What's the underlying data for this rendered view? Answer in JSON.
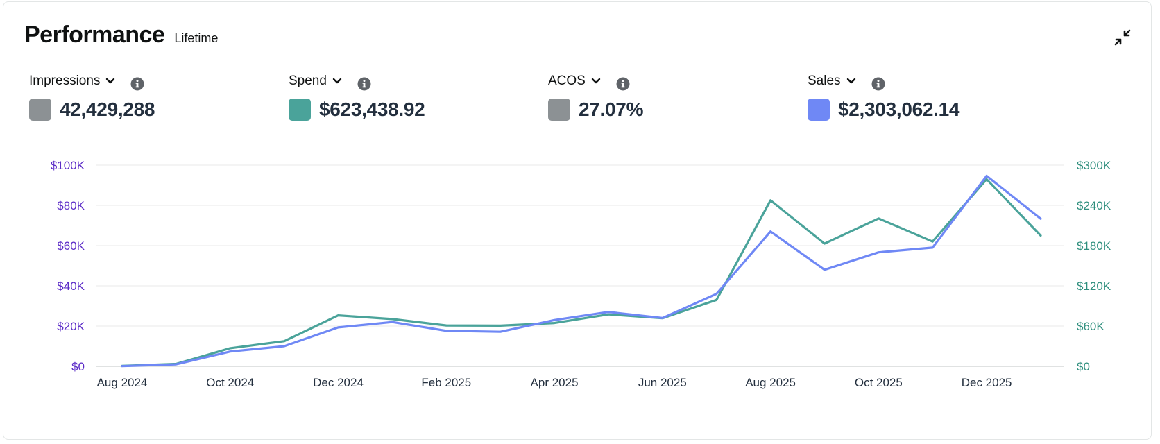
{
  "header": {
    "title": "Performance",
    "subtitle": "Lifetime"
  },
  "icons": {
    "collapse": "collapse-arrows-icon",
    "chevron": "chevron-down-icon",
    "info": "info-icon"
  },
  "metrics": [
    {
      "label": "Impressions",
      "value": "42,429,288",
      "color": "#8c9194"
    },
    {
      "label": "Spend",
      "value": "$623,438.92",
      "color": "#4aa39a"
    },
    {
      "label": "ACOS",
      "value": "27.07%",
      "color": "#8c9194"
    },
    {
      "label": "Sales",
      "value": "$2,303,062.14",
      "color": "#6f88f5"
    }
  ],
  "chart_data": {
    "type": "line",
    "x": [
      "Aug 2024",
      "Sep 2024",
      "Oct 2024",
      "Nov 2024",
      "Dec 2024",
      "Jan 2025",
      "Feb 2025",
      "Mar 2025",
      "Apr 2025",
      "May 2025",
      "Jun 2025",
      "Jul 2025",
      "Aug 2025",
      "Sep 2025",
      "Oct 2025",
      "Nov 2025",
      "Dec 2025",
      "Jan 2026"
    ],
    "x_tick_labels": [
      "Aug 2024",
      "Oct 2024",
      "Dec 2024",
      "Feb 2025",
      "Apr 2025",
      "Jun 2025",
      "Aug 2025",
      "Oct 2025",
      "Dec 2025"
    ],
    "x_tick_indices": [
      0,
      2,
      4,
      6,
      8,
      10,
      12,
      14,
      16
    ],
    "left_axis": {
      "ylim": [
        0,
        100000
      ],
      "ticks": [
        0,
        20000,
        40000,
        60000,
        80000,
        100000
      ],
      "tick_labels": [
        "$0",
        "$20K",
        "$40K",
        "$60K",
        "$80K",
        "$100K"
      ],
      "color": "#5b2bc7"
    },
    "right_axis": {
      "ylim": [
        0,
        300000
      ],
      "ticks": [
        0,
        60000,
        120000,
        180000,
        240000,
        300000
      ],
      "tick_labels": [
        "$0",
        "$60K",
        "$120K",
        "$180K",
        "$240K",
        "$300K"
      ],
      "color": "#2f8f7e"
    },
    "grid": true,
    "series": [
      {
        "name": "Spend",
        "axis": "left",
        "color": "#4aa39a",
        "values": [
          200,
          1200,
          9000,
          12500,
          25300,
          23500,
          20300,
          20200,
          21500,
          25800,
          23900,
          33000,
          82500,
          61000,
          73500,
          62000,
          93000,
          65000
        ]
      },
      {
        "name": "Sales",
        "axis": "right",
        "color": "#6f88f5",
        "values": [
          300,
          3000,
          22000,
          30000,
          58000,
          66000,
          53000,
          51500,
          69000,
          81000,
          72000,
          108000,
          201000,
          144000,
          170000,
          177000,
          284000,
          220000
        ]
      }
    ]
  }
}
